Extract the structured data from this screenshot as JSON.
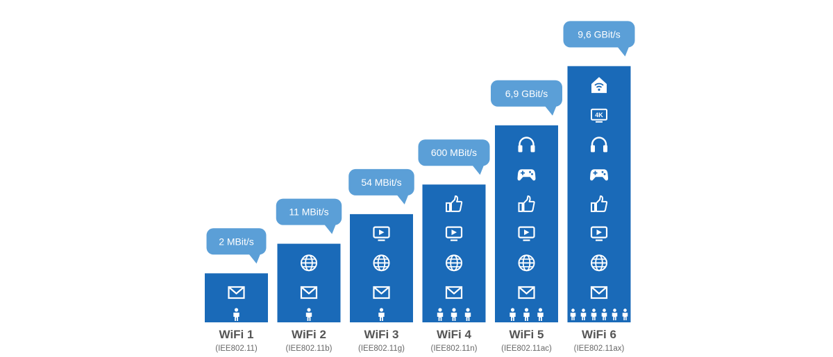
{
  "chart_data": {
    "type": "bar",
    "title": "",
    "xlabel": "",
    "ylabel": "",
    "colors": {
      "bar": "#1a6ab8",
      "bubble": "#5b9fd7",
      "icon": "#ffffff",
      "label": "#555555"
    },
    "categories": [
      "WiFi 1",
      "WiFi 2",
      "WiFi 3",
      "WiFi 4",
      "WiFi 5",
      "WiFi 6"
    ],
    "standards": [
      "(IEE802.11)",
      "(IEE802.11b)",
      "(IEE802.11g)",
      "(IEE802.11n)",
      "(IEE802.11ac)",
      "(IEE802.11ax)"
    ],
    "speed_labels": [
      "2 MBit/s",
      "11 MBit/s",
      "54 MBit/s",
      "600 MBit/s",
      "6,9 GBit/s",
      "9,6 GBit/s"
    ],
    "values_mbit": [
      2,
      11,
      54,
      600,
      6900,
      9600
    ],
    "users": [
      1,
      1,
      1,
      3,
      3,
      6
    ],
    "icons": [
      [
        "mail-icon"
      ],
      [
        "mail-icon",
        "globe-icon"
      ],
      [
        "mail-icon",
        "globe-icon",
        "video-icon"
      ],
      [
        "mail-icon",
        "globe-icon",
        "video-icon",
        "thumbs-up-icon"
      ],
      [
        "mail-icon",
        "globe-icon",
        "video-icon",
        "thumbs-up-icon",
        "gamepad-icon",
        "headphones-icon"
      ],
      [
        "mail-icon",
        "globe-icon",
        "video-icon",
        "thumbs-up-icon",
        "gamepad-icon",
        "headphones-icon",
        "4k-tv-icon",
        "smart-home-icon"
      ]
    ]
  },
  "icon_labels": {
    "4k": "4K"
  }
}
